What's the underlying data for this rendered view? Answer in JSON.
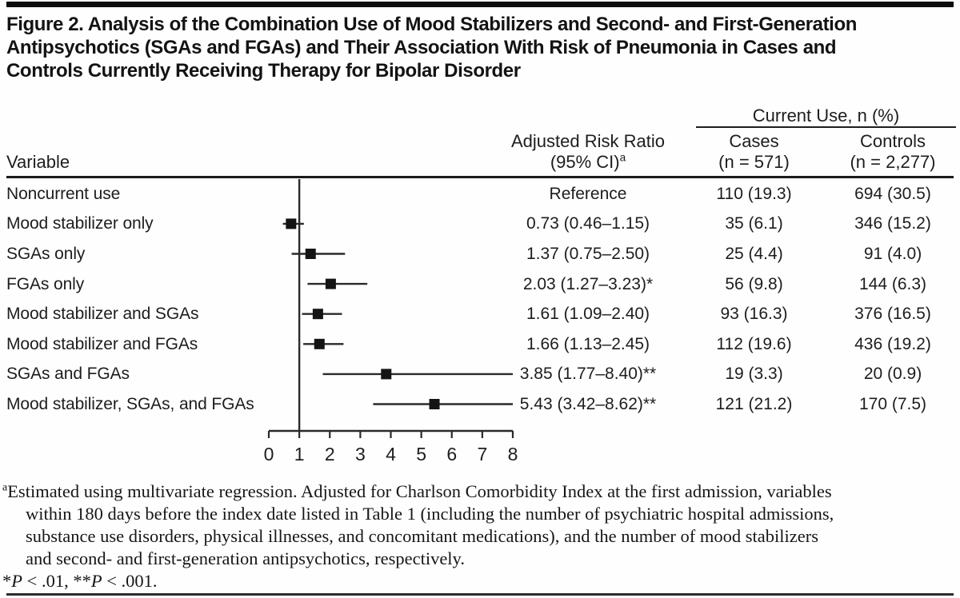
{
  "figure": {
    "title_lines": [
      "Figure 2. Analysis of the Combination Use of Mood Stabilizers and Second- and First-Generation",
      "Antipsychotics (SGAs and FGAs) and Their Association With Risk of Pneumonia in Cases and",
      "Controls Currently Receiving Therapy for Bipolar Disorder"
    ]
  },
  "table": {
    "variable_header": "Variable",
    "spanner_header": "Current Use, n (%)",
    "arr_header_line1": "Adjusted Risk Ratio",
    "arr_header_line2": "(95% CI)",
    "arr_header_sup": "a",
    "cases_header_line1": "Cases",
    "cases_header_line2": "(n = 571)",
    "controls_header_line1": "Controls",
    "controls_header_line2": "(n = 2,277)",
    "rows": [
      {
        "variable": "Noncurrent use",
        "arr": "Reference",
        "cases": "110 (19.3)",
        "controls": "694 (30.5)"
      },
      {
        "variable": "Mood stabilizer only",
        "arr": "0.73 (0.46–1.15)",
        "cases": "35 (6.1)",
        "controls": "346 (15.2)"
      },
      {
        "variable": "SGAs only",
        "arr": "1.37 (0.75–2.50)",
        "cases": "25 (4.4)",
        "controls": "91 (4.0)"
      },
      {
        "variable": "FGAs only",
        "arr": "2.03 (1.27–3.23)*",
        "cases": "56 (9.8)",
        "controls": "144 (6.3)"
      },
      {
        "variable": "Mood stabilizer and SGAs",
        "arr": "1.61 (1.09–2.40)",
        "cases": "93 (16.3)",
        "controls": "376 (16.5)"
      },
      {
        "variable": "Mood stabilizer and FGAs",
        "arr": "1.66 (1.13–2.45)",
        "cases": "112 (19.6)",
        "controls": "436 (19.2)"
      },
      {
        "variable": "SGAs and FGAs",
        "arr": "3.85 (1.77–8.40)**",
        "cases": "19 (3.3)",
        "controls": "20 (0.9)"
      },
      {
        "variable": "Mood stabilizer, SGAs, and FGAs",
        "arr": "5.43 (3.42–8.62)**",
        "cases": "121 (21.2)",
        "controls": "170 (7.5)"
      }
    ]
  },
  "chart_data": {
    "type": "forest",
    "title": "Adjusted risk ratio of pneumonia by mood stabilizer / antipsychotic combination",
    "xlabel": "",
    "ylabel": "",
    "x_axis": {
      "min": 0,
      "max": 8,
      "ticks": [
        0,
        1,
        2,
        3,
        4,
        5,
        6,
        7,
        8
      ],
      "reference_line": 1
    },
    "grid": false,
    "legend": "none",
    "marker": "square",
    "marker_color": "#141414",
    "line_color": "#2a2a2a",
    "series": [
      {
        "label": "Noncurrent use",
        "estimate": null,
        "ci_low": null,
        "ci_high": null,
        "note": "Reference"
      },
      {
        "label": "Mood stabilizer only",
        "estimate": 0.73,
        "ci_low": 0.46,
        "ci_high": 1.15
      },
      {
        "label": "SGAs only",
        "estimate": 1.37,
        "ci_low": 0.75,
        "ci_high": 2.5
      },
      {
        "label": "FGAs only",
        "estimate": 2.03,
        "ci_low": 1.27,
        "ci_high": 3.23
      },
      {
        "label": "Mood stabilizer and SGAs",
        "estimate": 1.61,
        "ci_low": 1.09,
        "ci_high": 2.4
      },
      {
        "label": "Mood stabilizer and FGAs",
        "estimate": 1.66,
        "ci_low": 1.13,
        "ci_high": 2.45
      },
      {
        "label": "SGAs and FGAs",
        "estimate": 3.85,
        "ci_low": 1.77,
        "ci_high": 8.4
      },
      {
        "label": "Mood stabilizer, SGAs, and FGAs",
        "estimate": 5.43,
        "ci_low": 3.42,
        "ci_high": 8.62
      }
    ]
  },
  "footnotes": {
    "a_marker": "a",
    "a_lines": [
      "Estimated using multivariate regression. Adjusted for Charlson Comorbidity Index at the first admission, variables",
      "within 180 days before the index date listed in Table 1 (including the number of psychiatric hospital admissions,",
      "substance use disorders, physical illnesses, and concomitant medications), and the number of mood stabilizers",
      "and second- and first-generation antipsychotics, respectively."
    ],
    "p_values": [
      {
        "text": "*"
      },
      {
        "text": "P",
        "italic": true
      },
      {
        "text": " < .01, **"
      },
      {
        "text": "P",
        "italic": true
      },
      {
        "text": " < .001."
      }
    ]
  }
}
